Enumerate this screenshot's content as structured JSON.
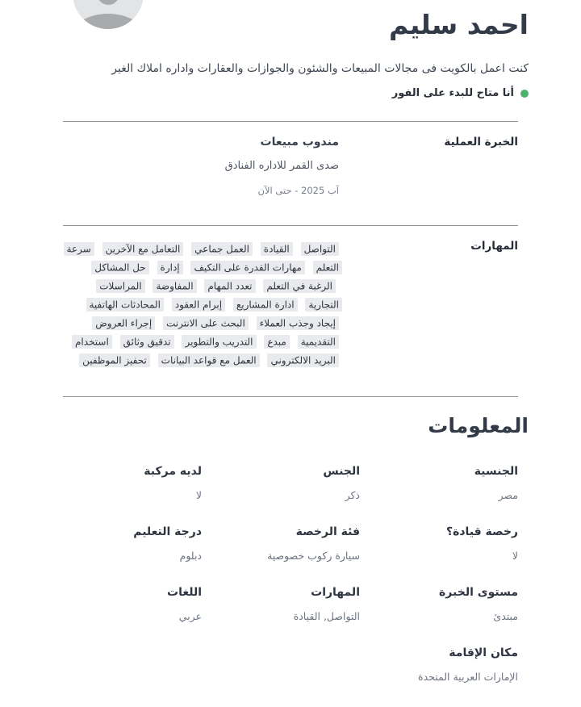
{
  "profile": {
    "name": "احمد سليم",
    "description": "كنت اعمل بالكويت فى مجالات المبيعات والشئون والجوازات والعقارات واداره املاك الغير",
    "availability": "أنا متاح للبدء على الفور"
  },
  "experience": {
    "section_label": "الخبرة العملية",
    "job_title": "مندوب مبيعات",
    "company": "صدى القمر للاداره الفنادق",
    "period": "آب 2025 - حتى الآن"
  },
  "skills": {
    "section_label": "المهارات",
    "tags": [
      "التواصل",
      "القيادة",
      "العمل جماعي",
      "التعامل مع الآخرين",
      "سرعة التعلم",
      "مهارات القدرة على التكيف",
      "إدارة",
      "حل المشاكل",
      "الرغبة في التعلم",
      "تعدد المهام",
      "المفاوضة",
      "المراسلات التجارية",
      "ادارة المشاريع",
      "إبرام العقود",
      "المحادثات الهاتفية",
      "إيجاد وجذب العملاء",
      "البحث على الانترنت",
      "إجراء العروض التقديمية",
      "مبدع",
      "التدريب والتطوير",
      "تدقيق وثائق",
      "استخدام البريد الالكتروني",
      "العمل مع قواعد البيانات",
      "تحفيز الموظفين"
    ]
  },
  "info": {
    "section_title": "المعلومات",
    "fields": [
      {
        "label": "الجنسية",
        "value": "مصر"
      },
      {
        "label": "الجنس",
        "value": "ذكر"
      },
      {
        "label": "لديه مركبة",
        "value": "لا"
      },
      {
        "label": "رخصة قيادة؟",
        "value": "لا"
      },
      {
        "label": "فئة الرخصة",
        "value": "سيارة ركوب خصوصية"
      },
      {
        "label": "درجة التعليم",
        "value": "دبلوم"
      },
      {
        "label": "مستوى الخبرة",
        "value": "مبتدئ"
      },
      {
        "label": "المهارات",
        "value": "التواصل, القيادة"
      },
      {
        "label": "اللغات",
        "value": "عربي"
      },
      {
        "label": "مكان الإقامة",
        "value": "الإمارات العربية المتحدة"
      }
    ]
  },
  "colors": {
    "availability_green": "#4db26d",
    "tag_background": "#e8eaed",
    "heading_text": "#333a47",
    "muted_text": "#6d7480",
    "divider": "#8f939a"
  }
}
